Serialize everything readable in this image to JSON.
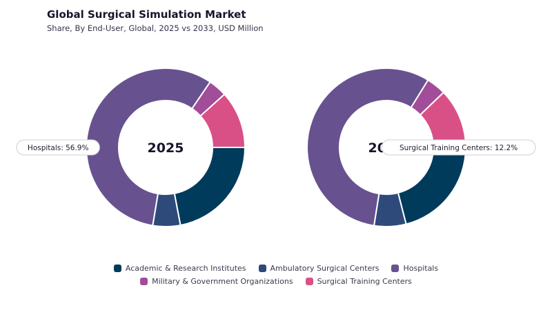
{
  "title": "Global Surgical Simulation Market",
  "subtitle": "Share, By End-User, Global, 2025 vs 2033, USD Million",
  "categories": [
    "Academic & Research Institutes",
    "Ambulatory Surgical Centers",
    "Hospitals",
    "Military & Government Organizations",
    "Surgical Training Centers"
  ],
  "colors": [
    "#003b5c",
    "#2d4a7a",
    "#67528f",
    "#a24d99",
    "#d95087"
  ],
  "chart_data": [
    {
      "type": "pie",
      "center_label": "2025",
      "categories": [
        "Academic & Research Institutes",
        "Ambulatory Surgical Centers",
        "Hospitals",
        "Military & Government Organizations",
        "Surgical Training Centers"
      ],
      "values": [
        22.0,
        5.6,
        56.9,
        3.8,
        11.7
      ],
      "callout": "Hospitals: 56.9%"
    },
    {
      "type": "pie",
      "center_label": "2033",
      "categories": [
        "Academic & Research Institutes",
        "Ambulatory Surgical Centers",
        "Hospitals",
        "Military & Government Organizations",
        "Surgical Training Centers"
      ],
      "values": [
        21.0,
        6.5,
        56.3,
        4.0,
        12.2
      ],
      "callout": "Surgical Training Centers: 12.2%"
    }
  ]
}
